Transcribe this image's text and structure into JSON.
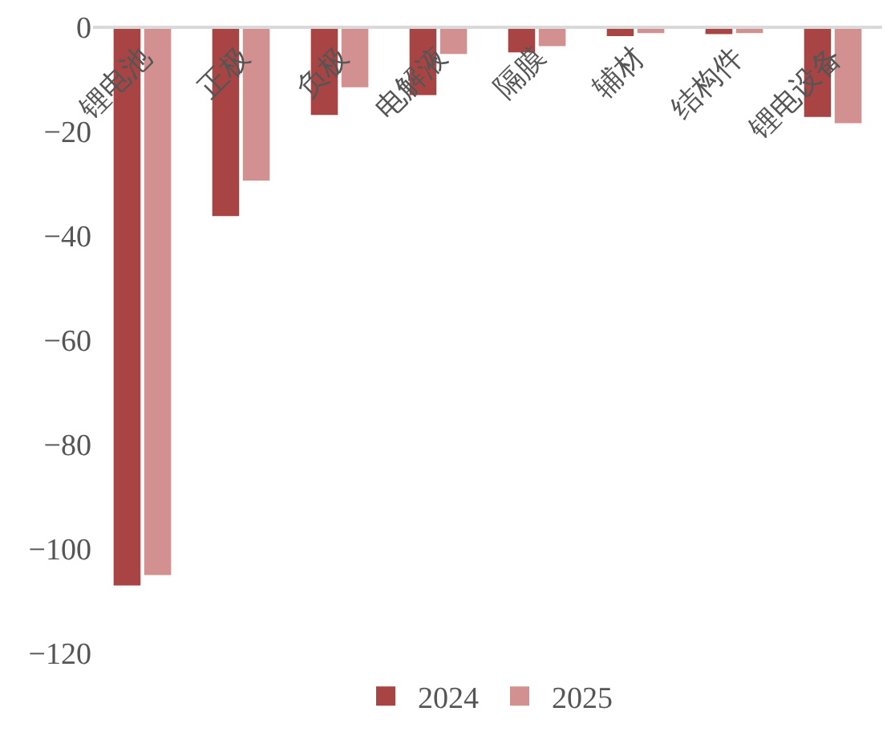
{
  "chart_data": {
    "type": "bar",
    "categories": [
      "锂电池",
      "正极",
      "负极",
      "电解液",
      "隔膜",
      "辅材",
      "结构件",
      "锂电设备"
    ],
    "series": [
      {
        "name": "2024",
        "color": "#a94444",
        "values": [
          -107,
          -36.2,
          -16.8,
          -13,
          -4.8,
          -1.7,
          -1.3,
          -17.2
        ]
      },
      {
        "name": "2025",
        "color": "#d39090",
        "values": [
          -105,
          -29.4,
          -11.5,
          -5.1,
          -3.6,
          -1.1,
          -1.1,
          -18.4
        ]
      }
    ],
    "ylim": [
      -120,
      0
    ],
    "yticks": [
      {
        "value": -120,
        "label": "−120"
      },
      {
        "value": -100,
        "label": "−100"
      },
      {
        "value": -80,
        "label": "−80"
      },
      {
        "value": -60,
        "label": "−60"
      },
      {
        "value": -40,
        "label": "−40"
      },
      {
        "value": -20,
        "label": "−20"
      },
      0
    ],
    "legend": "bottom"
  }
}
